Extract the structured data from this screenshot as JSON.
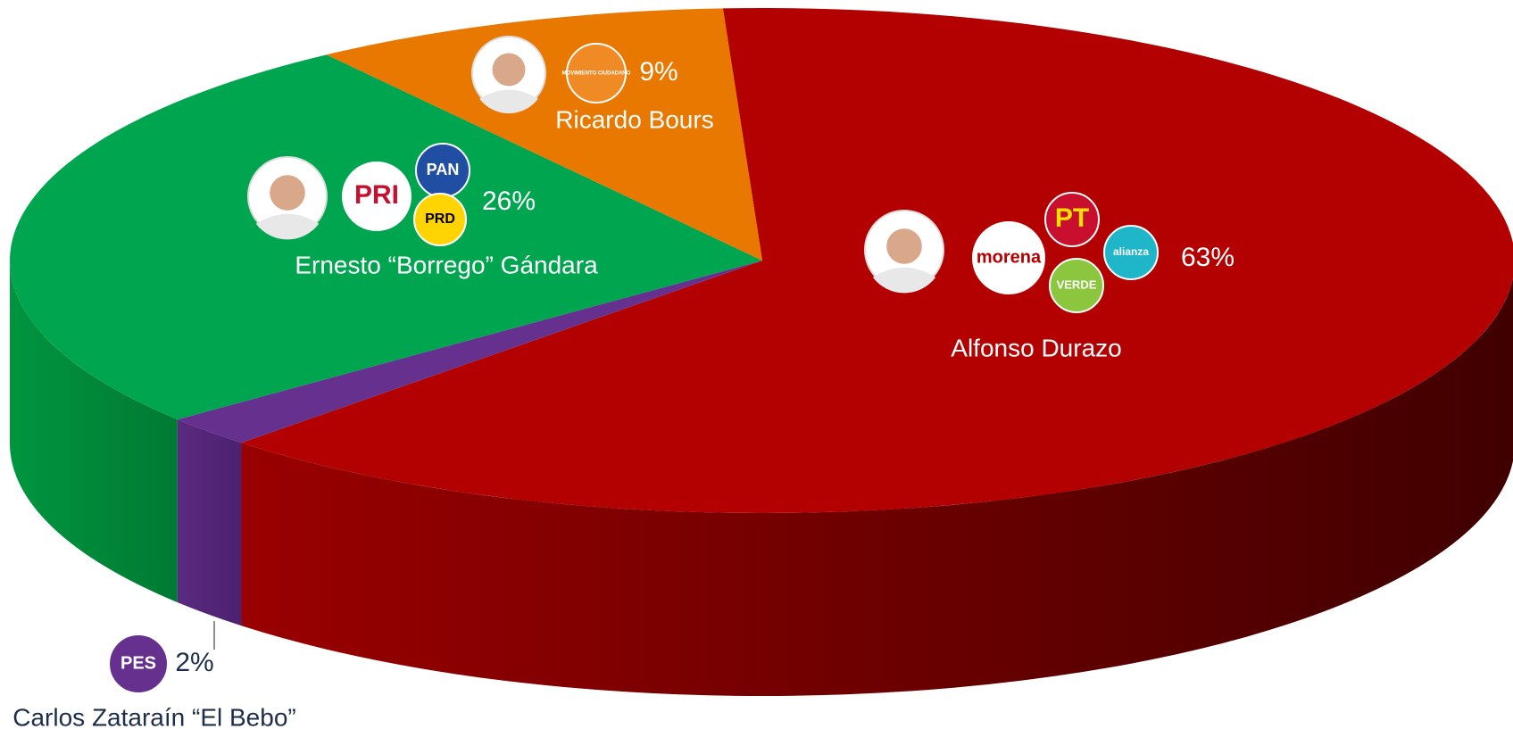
{
  "chart_data": {
    "type": "pie3d",
    "categories": [
      "Alfonso Durazo",
      "Carlos Zataraín “El Bebo”",
      "Ernesto “Borrego” Gándara",
      "Ricardo Bours"
    ],
    "values": [
      63,
      2,
      26,
      9
    ],
    "value_labels": [
      "63%",
      "2%",
      "26%",
      "9%"
    ],
    "colors": [
      "#b30000",
      "#66308f",
      "#00a64f",
      "#e87800"
    ],
    "parties": [
      [
        "morena",
        "PT",
        "VERDE",
        "alianza"
      ],
      [
        "PES"
      ],
      [
        "PRI",
        "PAN",
        "PRD"
      ],
      [
        "MOVIMIENTO CIUDADANO"
      ]
    ]
  }
}
